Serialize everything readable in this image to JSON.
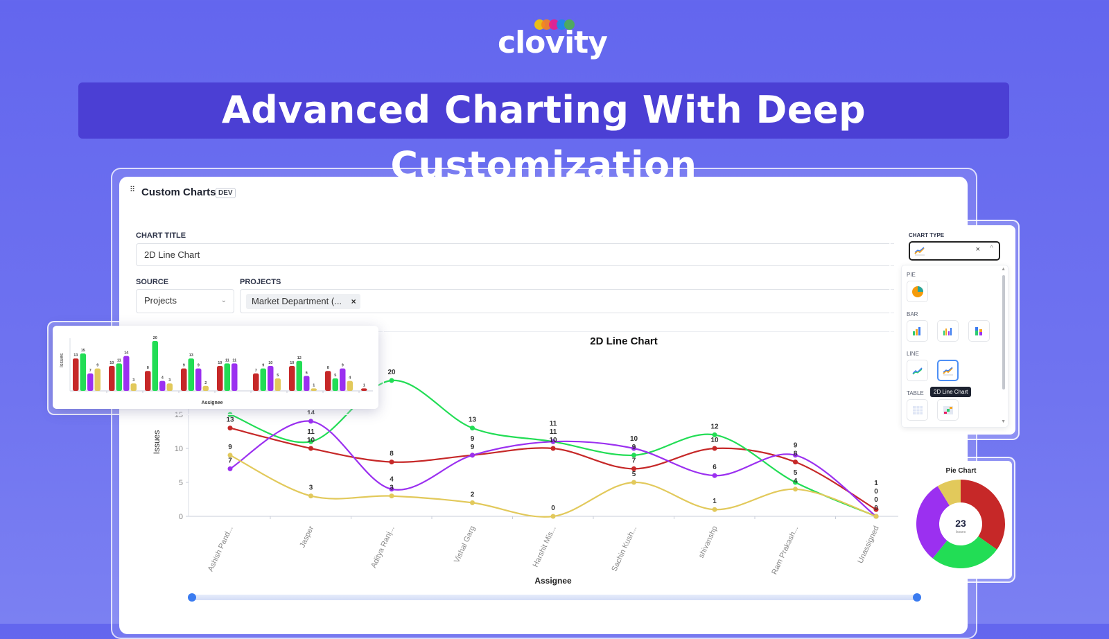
{
  "brand": {
    "logo_text": "clovity",
    "dot_colors": [
      "#f7c600",
      "#f58220",
      "#e91e8c",
      "#1e88e5",
      "#4caf50"
    ]
  },
  "banner": {
    "title": "Advanced Charting With Deep Customization"
  },
  "panel": {
    "title": "Custom Charts",
    "badge": "DEV"
  },
  "form": {
    "chart_title_label": "CHART TITLE",
    "chart_title_value": "2D Line Chart",
    "source_label": "SOURCE",
    "source_value": "Projects",
    "projects_label": "PROJECTS",
    "projects_tag": "Market Department (...",
    "remove_symbol": "×"
  },
  "chart_type": {
    "label": "CHART TYPE",
    "clear_symbol": "×",
    "groups": {
      "pie": "PIE",
      "bar": "BAR",
      "line": "LINE",
      "table": "TABLE"
    },
    "tooltip": "2D Line Chart"
  },
  "colors": {
    "red": "#c62828",
    "green": "#22dd55",
    "purple": "#9b30f0",
    "yellow": "#e2c95b"
  },
  "chart_data": [
    {
      "type": "line",
      "title": "2D Line Chart",
      "xlabel": "Assignee",
      "ylabel": "Issues",
      "ylim": [
        0,
        20
      ],
      "yticks": [
        0,
        5,
        10,
        15,
        20
      ],
      "categories": [
        "Ashish Pand...",
        "Jasper",
        "Aditya Ranj...",
        "Vishal Garg",
        "Harshit Mis...",
        "Sachin Kush...",
        "shivanshp",
        "Ram Prakash...",
        "Unassigned"
      ],
      "series": [
        {
          "name": "red",
          "color": "#c62828",
          "values": [
            13,
            10,
            8,
            9,
            10,
            7,
            10,
            8,
            1
          ]
        },
        {
          "name": "green",
          "color": "#22dd55",
          "values": [
            15,
            11,
            20,
            13,
            11,
            9,
            12,
            5,
            0
          ]
        },
        {
          "name": "purple",
          "color": "#9b30f0",
          "values": [
            7,
            14,
            4,
            9,
            11,
            10,
            6,
            9,
            0
          ]
        },
        {
          "name": "yellow",
          "color": "#e2c95b",
          "values": [
            9,
            3,
            3,
            2,
            0,
            5,
            1,
            4,
            0
          ]
        }
      ]
    },
    {
      "type": "bar",
      "xlabel": "Assignee",
      "ylabel": "Issues",
      "ylim": [
        0,
        20
      ],
      "categories": [
        "Ashish Pand...",
        "Jasper",
        "Aditya Ranj...",
        "Vishal Garg",
        "Harshit Mis...",
        "Sachin Kush...",
        "shivanshp",
        "Ram Prakash...",
        "Unassigned"
      ],
      "series": [
        {
          "name": "red",
          "color": "#c62828",
          "values": [
            13,
            10,
            8,
            9,
            10,
            7,
            10,
            8,
            1
          ]
        },
        {
          "name": "green",
          "color": "#22dd55",
          "values": [
            15,
            11,
            20,
            13,
            11,
            9,
            12,
            5,
            0
          ]
        },
        {
          "name": "purple",
          "color": "#9b30f0",
          "values": [
            7,
            14,
            4,
            9,
            11,
            10,
            6,
            9,
            0
          ]
        },
        {
          "name": "yellow",
          "color": "#e2c95b",
          "values": [
            9,
            3,
            3,
            2,
            0,
            5,
            1,
            4,
            0
          ]
        }
      ]
    },
    {
      "type": "pie",
      "title": "Pie Chart",
      "center_value": "23",
      "center_label": "Issues",
      "slices": [
        {
          "name": "red",
          "color": "#c62828",
          "value": 8
        },
        {
          "name": "green",
          "color": "#22dd55",
          "value": 6
        },
        {
          "name": "purple",
          "color": "#9b30f0",
          "value": 7
        },
        {
          "name": "yellow",
          "color": "#e2c95b",
          "value": 2
        }
      ]
    }
  ]
}
